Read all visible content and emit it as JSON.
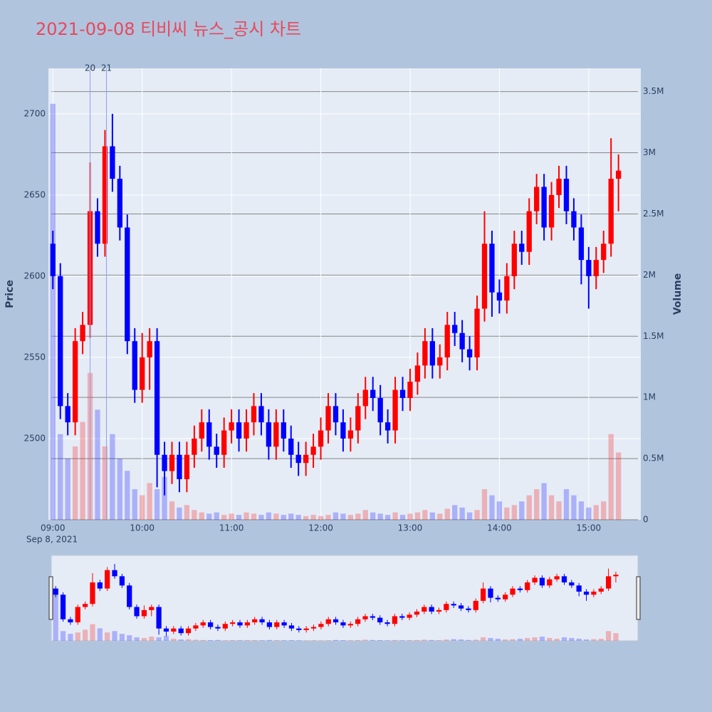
{
  "chart_data": {
    "type": "candlestick",
    "title": "2021-09-08 티비씨 뉴스_공시 차트",
    "y_label": "Price",
    "y2_label": "Volume",
    "x_date": "Sep 8, 2021",
    "increasing_color": "#ff0000",
    "decreasing_color": "#0000ff",
    "x": [
      "09:00",
      "09:05",
      "09:10",
      "09:15",
      "09:20",
      "09:25",
      "09:30",
      "09:35",
      "09:40",
      "09:45",
      "09:50",
      "09:55",
      "10:00",
      "10:05",
      "10:10",
      "10:15",
      "10:20",
      "10:25",
      "10:30",
      "10:35",
      "10:40",
      "10:45",
      "10:50",
      "10:55",
      "11:00",
      "11:05",
      "11:10",
      "11:15",
      "11:20",
      "11:25",
      "11:30",
      "11:35",
      "11:40",
      "11:45",
      "11:50",
      "11:55",
      "12:00",
      "12:05",
      "12:10",
      "12:15",
      "12:20",
      "12:25",
      "12:30",
      "12:35",
      "12:40",
      "12:45",
      "12:50",
      "12:55",
      "13:00",
      "13:05",
      "13:10",
      "13:15",
      "13:20",
      "13:25",
      "13:30",
      "13:35",
      "13:40",
      "13:45",
      "13:50",
      "13:55",
      "14:00",
      "14:05",
      "14:10",
      "14:15",
      "14:20",
      "14:25",
      "14:30",
      "14:35",
      "14:40",
      "14:45",
      "14:50",
      "14:55",
      "15:00",
      "15:05",
      "15:10",
      "15:15",
      "15:20"
    ],
    "open": [
      2620,
      2600,
      2520,
      2510,
      2560,
      2570,
      2640,
      2620,
      2680,
      2660,
      2630,
      2560,
      2530,
      2550,
      2560,
      2490,
      2480,
      2490,
      2475,
      2490,
      2500,
      2510,
      2495,
      2490,
      2505,
      2510,
      2500,
      2510,
      2520,
      2510,
      2495,
      2510,
      2500,
      2490,
      2485,
      2490,
      2495,
      2505,
      2520,
      2510,
      2500,
      2505,
      2520,
      2530,
      2525,
      2510,
      2505,
      2530,
      2525,
      2535,
      2545,
      2560,
      2545,
      2550,
      2570,
      2565,
      2555,
      2550,
      2580,
      2620,
      2590,
      2585,
      2600,
      2620,
      2615,
      2640,
      2655,
      2630,
      2650,
      2660,
      2640,
      2630,
      2610,
      2600,
      2610,
      2620,
      2660
    ],
    "high": [
      2628,
      2608,
      2528,
      2568,
      2578,
      2670,
      2648,
      2690,
      2700,
      2668,
      2638,
      2568,
      2565,
      2568,
      2568,
      2498,
      2498,
      2498,
      2498,
      2508,
      2518,
      2518,
      2503,
      2513,
      2518,
      2518,
      2518,
      2528,
      2528,
      2518,
      2518,
      2518,
      2508,
      2498,
      2498,
      2503,
      2513,
      2528,
      2528,
      2518,
      2513,
      2528,
      2538,
      2538,
      2533,
      2518,
      2538,
      2538,
      2543,
      2553,
      2568,
      2568,
      2558,
      2578,
      2578,
      2573,
      2563,
      2588,
      2640,
      2628,
      2598,
      2608,
      2628,
      2628,
      2648,
      2663,
      2663,
      2658,
      2668,
      2668,
      2648,
      2638,
      2618,
      2618,
      2628,
      2685,
      2675
    ],
    "low": [
      2592,
      2512,
      2502,
      2502,
      2552,
      2562,
      2612,
      2612,
      2652,
      2622,
      2552,
      2522,
      2522,
      2530,
      2470,
      2465,
      2472,
      2467,
      2467,
      2482,
      2492,
      2487,
      2482,
      2482,
      2497,
      2492,
      2492,
      2502,
      2502,
      2487,
      2487,
      2492,
      2482,
      2477,
      2477,
      2482,
      2487,
      2497,
      2502,
      2492,
      2492,
      2497,
      2512,
      2517,
      2502,
      2497,
      2497,
      2517,
      2517,
      2527,
      2537,
      2537,
      2537,
      2542,
      2557,
      2547,
      2542,
      2542,
      2572,
      2575,
      2577,
      2577,
      2592,
      2607,
      2607,
      2632,
      2622,
      2622,
      2642,
      2632,
      2622,
      2595,
      2580,
      2592,
      2602,
      2612,
      2640
    ],
    "close": [
      2600,
      2520,
      2510,
      2560,
      2570,
      2640,
      2620,
      2680,
      2660,
      2630,
      2560,
      2530,
      2550,
      2560,
      2490,
      2480,
      2490,
      2475,
      2490,
      2500,
      2510,
      2495,
      2490,
      2505,
      2510,
      2500,
      2510,
      2520,
      2510,
      2495,
      2510,
      2500,
      2490,
      2485,
      2490,
      2495,
      2505,
      2520,
      2510,
      2500,
      2505,
      2520,
      2530,
      2525,
      2510,
      2505,
      2530,
      2525,
      2535,
      2545,
      2560,
      2545,
      2550,
      2570,
      2565,
      2555,
      2550,
      2580,
      2620,
      2590,
      2585,
      2600,
      2620,
      2615,
      2640,
      2655,
      2630,
      2650,
      2660,
      2640,
      2630,
      2610,
      2600,
      2610,
      2620,
      2660,
      2665
    ],
    "volume": [
      3400000,
      700000,
      500000,
      600000,
      800000,
      1200000,
      900000,
      600000,
      700000,
      500000,
      400000,
      250000,
      200000,
      300000,
      250000,
      350000,
      150000,
      100000,
      120000,
      80000,
      60000,
      50000,
      60000,
      40000,
      50000,
      40000,
      60000,
      50000,
      40000,
      60000,
      50000,
      40000,
      50000,
      40000,
      30000,
      40000,
      30000,
      40000,
      60000,
      50000,
      40000,
      50000,
      80000,
      60000,
      50000,
      40000,
      60000,
      40000,
      50000,
      60000,
      80000,
      60000,
      50000,
      90000,
      120000,
      100000,
      60000,
      80000,
      250000,
      200000,
      150000,
      100000,
      120000,
      150000,
      200000,
      250000,
      300000,
      200000,
      150000,
      250000,
      200000,
      150000,
      100000,
      120000,
      150000,
      700000,
      550000
    ],
    "xlim": [
      "08:57",
      "15:35"
    ],
    "xticks": [
      "09:00",
      "10:00",
      "11:00",
      "12:00",
      "13:00",
      "14:00",
      "15:00"
    ],
    "ylim": [
      2450,
      2728
    ],
    "yticks": [
      2500,
      2550,
      2600,
      2650,
      2700
    ],
    "y2lim": [
      0,
      3690000
    ],
    "y2ticks": [
      0,
      {
        "value": 500000,
        "label": "0.5M"
      },
      {
        "value": 1000000,
        "label": "1M"
      },
      {
        "value": 1500000,
        "label": "1.5M"
      },
      {
        "value": 2000000,
        "label": "2M"
      },
      {
        "value": 2500000,
        "label": "2.5M"
      },
      {
        "value": 3000000,
        "label": "3M"
      },
      {
        "value": 3500000,
        "label": "3.5M"
      }
    ],
    "annotations": [
      {
        "x": "09:25",
        "text": "20"
      },
      {
        "x": "09:36",
        "text": "21"
      }
    ],
    "grid": true
  }
}
